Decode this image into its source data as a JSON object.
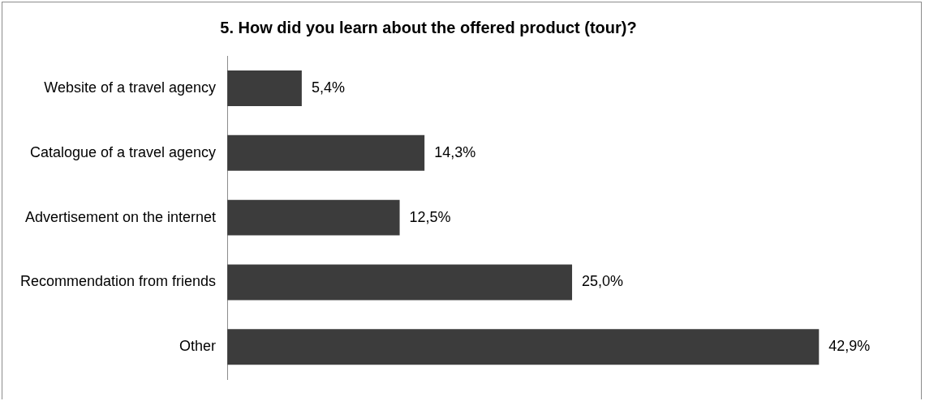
{
  "chart_data": {
    "type": "bar",
    "orientation": "horizontal",
    "title": "5. How did you learn about the offered product (tour)?",
    "categories": [
      "Website of a travel agency",
      "Catalogue of a travel agency",
      "Advertisement on the internet",
      "Recommendation from friends",
      "Other"
    ],
    "values": [
      5.4,
      14.3,
      12.5,
      25.0,
      42.9
    ],
    "value_labels": [
      "5,4%",
      "14,3%",
      "12,5%",
      "25,0%",
      "42,9%"
    ],
    "color": "#3c3c3c"
  }
}
